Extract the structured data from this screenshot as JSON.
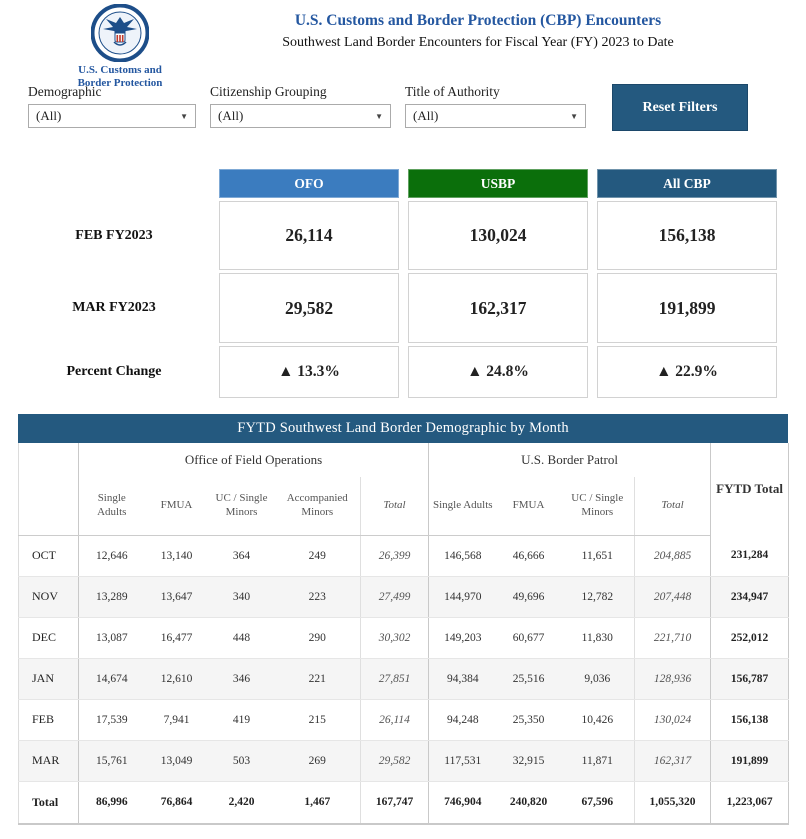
{
  "header": {
    "title": "U.S. Customs and Border Protection (CBP) Encounters",
    "subtitle": "Southwest Land Border Encounters for Fiscal Year (FY) 2023 to Date",
    "logo_line1": "U.S. Customs and",
    "logo_line2": "Border Protection"
  },
  "filters": {
    "items": [
      {
        "label": "Demographic",
        "value": "(All)"
      },
      {
        "label": "Citizenship Grouping",
        "value": "(All)"
      },
      {
        "label": "Title of Authority",
        "value": "(All)"
      }
    ],
    "reset_label": "Reset Filters"
  },
  "colors": {
    "navy": "#24597F",
    "ofo_blue": "#3B7CBF",
    "usbp_green": "#0B6F0B",
    "title_blue": "#2457A0"
  },
  "summary": {
    "columns": [
      {
        "label": "OFO",
        "color": "#3B7CBF"
      },
      {
        "label": "USBP",
        "color": "#0B6F0B"
      },
      {
        "label": "All CBP",
        "color": "#24597F"
      }
    ],
    "rows": [
      {
        "label": "FEB FY2023",
        "type": "value",
        "values": [
          "26,114",
          "130,024",
          "156,138"
        ]
      },
      {
        "label": "MAR FY2023",
        "type": "value",
        "values": [
          "29,582",
          "162,317",
          "191,899"
        ]
      },
      {
        "label": "Percent Change",
        "type": "percent",
        "values": [
          "▲ 13.3%",
          "▲ 24.8%",
          "▲ 22.9%"
        ]
      }
    ]
  },
  "monthly_table": {
    "title": "FYTD Southwest Land Border Demographic by Month",
    "group_headers": [
      "Office of Field Operations",
      "U.S. Border Patrol"
    ],
    "fytd_header": "FYTD Total",
    "column_headers": [
      "Single Adults",
      "FMUA",
      "UC / Single Minors",
      "Accompanied Minors",
      "Total",
      "Single Adults",
      "FMUA",
      "UC / Single Minors",
      "Total"
    ],
    "rows": [
      {
        "month": "OCT",
        "is_total": false,
        "values": [
          "12,646",
          "13,140",
          "364",
          "249",
          "26,399",
          "146,568",
          "46,666",
          "11,651",
          "204,885",
          "231,284"
        ]
      },
      {
        "month": "NOV",
        "is_total": false,
        "values": [
          "13,289",
          "13,647",
          "340",
          "223",
          "27,499",
          "144,970",
          "49,696",
          "12,782",
          "207,448",
          "234,947"
        ]
      },
      {
        "month": "DEC",
        "is_total": false,
        "values": [
          "13,087",
          "16,477",
          "448",
          "290",
          "30,302",
          "149,203",
          "60,677",
          "11,830",
          "221,710",
          "252,012"
        ]
      },
      {
        "month": "JAN",
        "is_total": false,
        "values": [
          "14,674",
          "12,610",
          "346",
          "221",
          "27,851",
          "94,384",
          "25,516",
          "9,036",
          "128,936",
          "156,787"
        ]
      },
      {
        "month": "FEB",
        "is_total": false,
        "values": [
          "17,539",
          "7,941",
          "419",
          "215",
          "26,114",
          "94,248",
          "25,350",
          "10,426",
          "130,024",
          "156,138"
        ]
      },
      {
        "month": "MAR",
        "is_total": false,
        "values": [
          "15,761",
          "13,049",
          "503",
          "269",
          "29,582",
          "117,531",
          "32,915",
          "11,871",
          "162,317",
          "191,899"
        ]
      },
      {
        "month": "Total",
        "is_total": true,
        "values": [
          "86,996",
          "76,864",
          "2,420",
          "1,467",
          "167,747",
          "746,904",
          "240,820",
          "67,596",
          "1,055,320",
          "1,223,067"
        ]
      }
    ]
  }
}
